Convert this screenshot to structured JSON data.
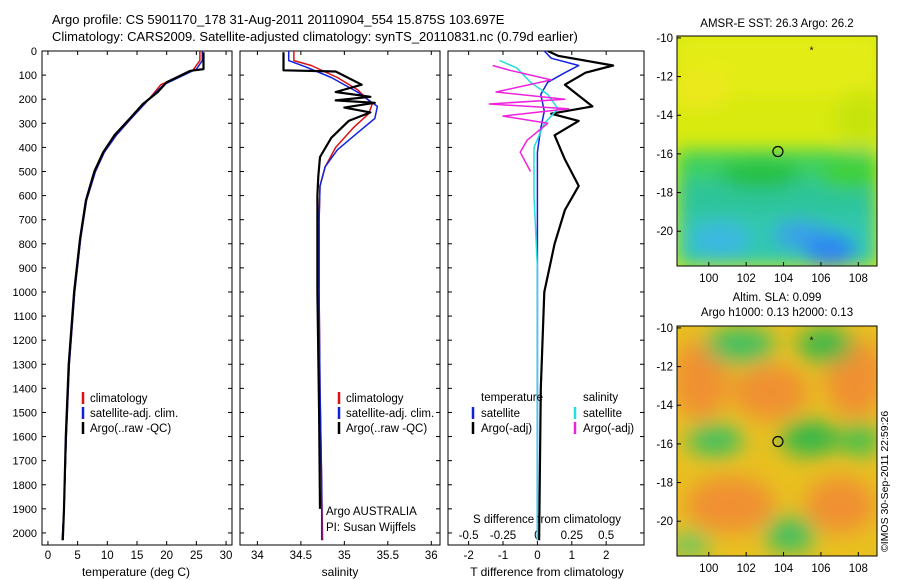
{
  "header": {
    "line1": "Argo profile: CS 5901170_178 31-Aug-2011 20110904_554 15.875S 103.697E",
    "line2": "Climatology: CARS2009. Satellite-adjusted climatology: synTS_20110831.nc (0.79d earlier)"
  },
  "credit": "©IMOS 30-Sep-2011 22:59:26",
  "colors": {
    "climatology": "#dd1111",
    "satellite": "#1122dd",
    "argo": "#000000",
    "sal_satellite": "#22e0e0",
    "sal_argo": "#ee22dd"
  },
  "depth_axis": {
    "min": 0,
    "max": 2050,
    "ticks": [
      0,
      100,
      200,
      300,
      400,
      500,
      600,
      700,
      800,
      900,
      1000,
      1100,
      1200,
      1300,
      1400,
      1500,
      1600,
      1700,
      1800,
      1900,
      2000
    ]
  },
  "chart_data": [
    {
      "type": "line",
      "xlabel": "temperature (deg C)",
      "xlim": [
        -1,
        31
      ],
      "ylim": [
        2050,
        0
      ],
      "xticks": [
        "0",
        "5",
        "10",
        "15",
        "20",
        "25",
        "30"
      ],
      "xtick_values": [
        0,
        5,
        10,
        15,
        20,
        25,
        30
      ],
      "legend": [
        "climatology",
        "satellite-adj. clim.",
        "Argo(..raw -QC)"
      ],
      "series": [
        {
          "name": "climatology",
          "color": "#dd1111",
          "points": [
            [
              25.6,
              0
            ],
            [
              25.6,
              40
            ],
            [
              24.4,
              80
            ],
            [
              19,
              140
            ],
            [
              17,
              200
            ],
            [
              14,
              280
            ],
            [
              11.5,
              350
            ],
            [
              9.5,
              420
            ],
            [
              8,
              500
            ],
            [
              6.5,
              620
            ],
            [
              5.5,
              780
            ],
            [
              4.5,
              1000
            ],
            [
              3.6,
              1300
            ],
            [
              3.1,
              1600
            ],
            [
              2.7,
              1900
            ],
            [
              2.4,
              2030
            ]
          ]
        },
        {
          "name": "satellite-adj. clim.",
          "color": "#1122dd",
          "points": [
            [
              26,
              0
            ],
            [
              26,
              40
            ],
            [
              25,
              75
            ],
            [
              19.5,
              140
            ],
            [
              17,
              200
            ],
            [
              14,
              280
            ],
            [
              11.5,
              350
            ],
            [
              9.5,
              420
            ],
            [
              8,
              500
            ],
            [
              6.5,
              620
            ],
            [
              5.5,
              780
            ],
            [
              4.5,
              1000
            ],
            [
              3.6,
              1300
            ],
            [
              3.1,
              1600
            ],
            [
              2.7,
              1900
            ],
            [
              2.4,
              2030
            ]
          ]
        },
        {
          "name": "Argo(..raw -QC)",
          "color": "#000000",
          "points": [
            [
              26.2,
              5
            ],
            [
              26.2,
              75
            ],
            [
              24,
              82
            ],
            [
              20,
              130
            ],
            [
              18.5,
              170
            ],
            [
              16,
              220
            ],
            [
              13.8,
              280
            ],
            [
              11.2,
              350
            ],
            [
              9.3,
              420
            ],
            [
              7.8,
              500
            ],
            [
              6.4,
              620
            ],
            [
              5.4,
              780
            ],
            [
              4.4,
              1000
            ],
            [
              3.5,
              1300
            ],
            [
              3.0,
              1600
            ],
            [
              2.7,
              1900
            ],
            [
              2.5,
              2030
            ]
          ]
        }
      ]
    },
    {
      "type": "line",
      "xlabel": "salinity",
      "xlim": [
        33.8,
        36.1
      ],
      "ylim": [
        2050,
        0
      ],
      "xticks": [
        "34",
        "34.5",
        "35",
        "35.5",
        "36"
      ],
      "xtick_values": [
        34,
        34.5,
        35,
        35.5,
        36
      ],
      "legend": [
        "climatology",
        "satellite-adj. clim.",
        "Argo(..raw -QC)"
      ],
      "annotation1": "Argo AUSTRALIA",
      "annotation2": "PI: Susan Wijffels",
      "series": [
        {
          "name": "climatology",
          "color": "#dd1111",
          "points": [
            [
              34.42,
              0
            ],
            [
              34.42,
              40
            ],
            [
              34.62,
              60
            ],
            [
              34.92,
              110
            ],
            [
              35.15,
              160
            ],
            [
              35.32,
              220
            ],
            [
              35.28,
              260
            ],
            [
              35.1,
              320
            ],
            [
              34.9,
              400
            ],
            [
              34.78,
              480
            ],
            [
              34.72,
              560
            ],
            [
              34.71,
              700
            ],
            [
              34.71,
              1000
            ],
            [
              34.72,
              1400
            ],
            [
              34.74,
              1800
            ],
            [
              34.75,
              2030
            ]
          ]
        },
        {
          "name": "satellite-adj. clim.",
          "color": "#1122dd",
          "points": [
            [
              34.36,
              0
            ],
            [
              34.36,
              40
            ],
            [
              34.55,
              65
            ],
            [
              34.85,
              110
            ],
            [
              35.15,
              170
            ],
            [
              35.38,
              230
            ],
            [
              35.35,
              280
            ],
            [
              35.15,
              340
            ],
            [
              34.92,
              410
            ],
            [
              34.78,
              480
            ],
            [
              34.72,
              560
            ],
            [
              34.71,
              700
            ],
            [
              34.71,
              1000
            ],
            [
              34.72,
              1400
            ],
            [
              34.74,
              1800
            ],
            [
              34.74,
              2030
            ]
          ]
        },
        {
          "name": "Argo(..raw -QC)",
          "color": "#000000",
          "points": [
            [
              34.3,
              5
            ],
            [
              34.3,
              80
            ],
            [
              34.9,
              85
            ],
            [
              35.2,
              140
            ],
            [
              34.9,
              170
            ],
            [
              35.3,
              190
            ],
            [
              34.9,
              205
            ],
            [
              35.35,
              215
            ],
            [
              35.0,
              235
            ],
            [
              35.3,
              255
            ],
            [
              35.05,
              290
            ],
            [
              34.85,
              360
            ],
            [
              34.72,
              440
            ],
            [
              34.7,
              520
            ],
            [
              34.69,
              600
            ],
            [
              34.69,
              1000
            ],
            [
              34.71,
              1500
            ],
            [
              34.72,
              1900
            ]
          ]
        }
      ]
    },
    {
      "type": "line",
      "xlabel": "T difference from climatology",
      "xlabel_top": "S difference from climatology",
      "xlim": [
        -2.6,
        3.1
      ],
      "ylim": [
        2050,
        0
      ],
      "xticks": [
        "-2",
        "-1",
        "0",
        "1",
        "2"
      ],
      "xtick_values": [
        -2,
        -1,
        0,
        1,
        2
      ],
      "xticks_top": [
        "-0.5",
        "-0.25",
        "0",
        "0.25",
        "0.5"
      ],
      "xtick_top_positions": [
        -2,
        -1,
        0,
        1,
        2
      ],
      "legend_left_title": "temperature",
      "legend_right_title": "salinity",
      "legend_left": [
        "satellite",
        "Argo(-adj)"
      ],
      "legend_right": [
        "satellite",
        "Argo(-adj)"
      ],
      "series": [
        {
          "name": "satellite",
          "color": "#1122dd",
          "points": [
            [
              0.2,
              0
            ],
            [
              0.4,
              30
            ],
            [
              1.2,
              60
            ],
            [
              0.8,
              90
            ],
            [
              0.3,
              130
            ],
            [
              0.1,
              180
            ],
            [
              0.2,
              250
            ],
            [
              0.1,
              320
            ],
            [
              0,
              420
            ],
            [
              0,
              1000
            ],
            [
              0,
              2030
            ]
          ]
        },
        {
          "name": "Argo(-adj)",
          "color": "#000000",
          "points": [
            [
              0.3,
              0
            ],
            [
              0.6,
              20
            ],
            [
              2.2,
              60
            ],
            [
              1.4,
              90
            ],
            [
              0.8,
              140
            ],
            [
              1.6,
              230
            ],
            [
              0.4,
              260
            ],
            [
              1.2,
              290
            ],
            [
              0.5,
              350
            ],
            [
              0.8,
              450
            ],
            [
              1.2,
              560
            ],
            [
              0.8,
              660
            ],
            [
              0.5,
              800
            ],
            [
              0.2,
              1000
            ],
            [
              0.1,
              1400
            ],
            [
              0.05,
              2030
            ]
          ]
        },
        {
          "name": "satellite",
          "color": "#22e0e0",
          "points": [
            [
              -1.1,
              40
            ],
            [
              -0.6,
              70
            ],
            [
              -0.2,
              130
            ],
            [
              0.3,
              180
            ],
            [
              0.6,
              240
            ],
            [
              0.2,
              300
            ],
            [
              -0.1,
              400
            ],
            [
              -0.1,
              600
            ],
            [
              0,
              900
            ],
            [
              0,
              2030
            ]
          ]
        },
        {
          "name": "Argo(-adj)",
          "color": "#ee22dd",
          "points": [
            [
              -1.3,
              60
            ],
            [
              -0.8,
              80
            ],
            [
              0.4,
              120
            ],
            [
              -1.2,
              170
            ],
            [
              0.8,
              200
            ],
            [
              -1.4,
              220
            ],
            [
              0.9,
              240
            ],
            [
              -1.0,
              270
            ],
            [
              0.3,
              300
            ],
            [
              -0.3,
              370
            ],
            [
              -0.5,
              420
            ],
            [
              -0.2,
              500
            ]
          ]
        }
      ]
    },
    {
      "type": "heatmap",
      "title": "AMSR-E SST: 26.3  Argo: 26.2",
      "xlim": [
        98.3,
        109
      ],
      "ylim": [
        -21.8,
        -9.9
      ],
      "xticks": [
        "100",
        "102",
        "104",
        "106",
        "108"
      ],
      "xtick_values": [
        100,
        102,
        104,
        106,
        108
      ],
      "yticks": [
        "-10",
        "-12",
        "-14",
        "-16",
        "-18",
        "-20"
      ],
      "ytick_values": [
        -10,
        -12,
        -14,
        -16,
        -18,
        -20
      ],
      "marker_circle": [
        103.7,
        -15.875
      ],
      "marker_star": [
        105.5,
        -10.6
      ]
    },
    {
      "type": "heatmap",
      "title": "Altim. SLA: 0.099",
      "subtitle": "Argo h1000: 0.13 h2000: 0.13",
      "xlim": [
        98.3,
        109
      ],
      "ylim": [
        -21.8,
        -9.9
      ],
      "xticks": [
        "100",
        "102",
        "104",
        "106",
        "108"
      ],
      "xtick_values": [
        100,
        102,
        104,
        106,
        108
      ],
      "yticks": [
        "-10",
        "-12",
        "-14",
        "-16",
        "-18",
        "-20"
      ],
      "ytick_values": [
        -10,
        -12,
        -14,
        -16,
        -18,
        -20
      ],
      "marker_circle": [
        103.7,
        -15.875
      ],
      "marker_star": [
        105.5,
        -10.6
      ]
    }
  ]
}
